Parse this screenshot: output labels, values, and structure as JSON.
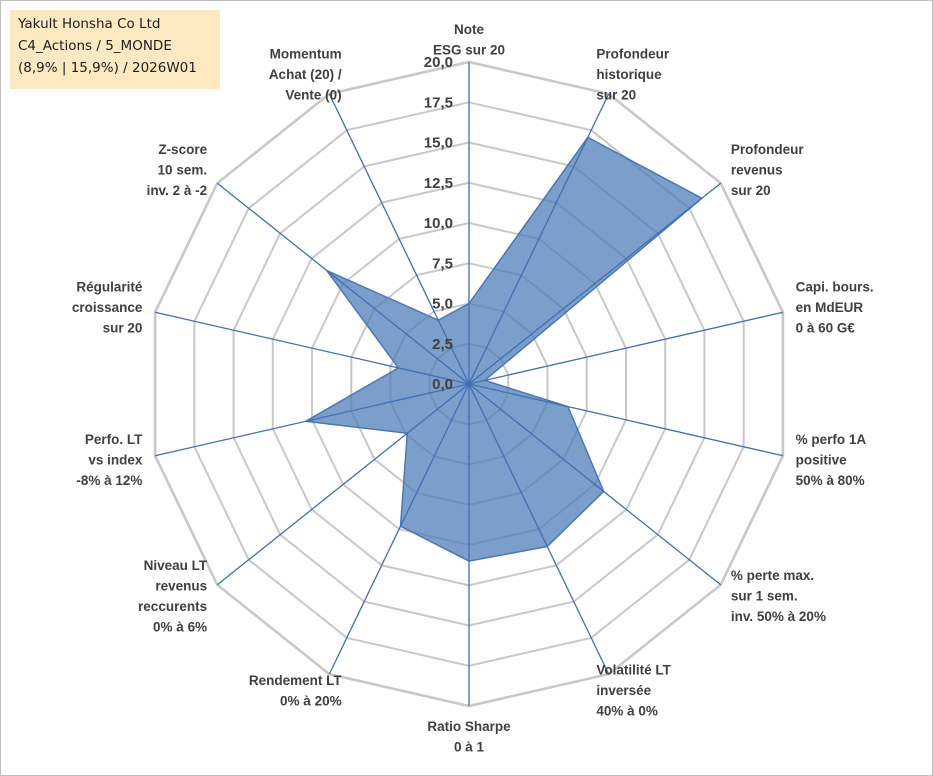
{
  "info_box": {
    "line1": "Yakult Honsha Co Ltd",
    "line2": "C4_Actions / 5_MONDE",
    "line3": "(8,9% | 15,9%) / 2026W01"
  },
  "colors": {
    "fill": "#4a78b5",
    "axis_spoke": "#3f6fb5",
    "grid": "#c8c8c8",
    "text": "#404040",
    "info_bg": "#fde9c1"
  },
  "chart_data": {
    "type": "radar",
    "title": "",
    "range": [
      0,
      20
    ],
    "tick_step": 2.5,
    "tick_labels": [
      "0,0",
      "2,5",
      "5,0",
      "7,5",
      "10,0",
      "12,5",
      "15,0",
      "17,5",
      "20,0"
    ],
    "axes": [
      {
        "label": [
          "Note",
          "ESG sur 20"
        ],
        "value": 5.0
      },
      {
        "label": [
          "Profondeur",
          "historique",
          "sur 20"
        ],
        "value": 17.0
      },
      {
        "label": [
          "Profondeur",
          "revenus",
          "sur 20"
        ],
        "value": 18.5
      },
      {
        "label": [
          "Capi. bours.",
          "en MdEUR",
          "0 à 60 G€"
        ],
        "value": 1.0
      },
      {
        "label": [
          "% perfo 1A",
          "positive",
          "50% à 80%"
        ],
        "value": 6.3
      },
      {
        "label": [
          "% perte max.",
          "sur 1 sem.",
          "inv. 50% à 20%"
        ],
        "value": 10.7
      },
      {
        "label": [
          "Volatilité LT",
          "inversée",
          "40% à 0%"
        ],
        "value": 11.2
      },
      {
        "label": [
          "Ratio Sharpe",
          "0 à 1"
        ],
        "value": 11.0
      },
      {
        "label": [
          "Rendement LT",
          "0% à 20%"
        ],
        "value": 9.8
      },
      {
        "label": [
          "Niveau LT",
          "revenus",
          "reccurents",
          "0% à 6%"
        ],
        "value": 4.9
      },
      {
        "label": [
          "Perfo. LT",
          "vs index",
          "-8% à 12%"
        ],
        "value": 10.4
      },
      {
        "label": [
          "Régularité",
          "croissance",
          "sur 20"
        ],
        "value": 4.5
      },
      {
        "label": [
          "Z-score",
          "10 sem.",
          "inv. 2 à -2"
        ],
        "value": 11.3
      },
      {
        "label": [
          "Momentum",
          "Achat (20) /",
          "Vente (0)"
        ],
        "value": 4.4
      }
    ],
    "series": [
      {
        "name": "Yakult Honsha Co Ltd"
      }
    ]
  }
}
